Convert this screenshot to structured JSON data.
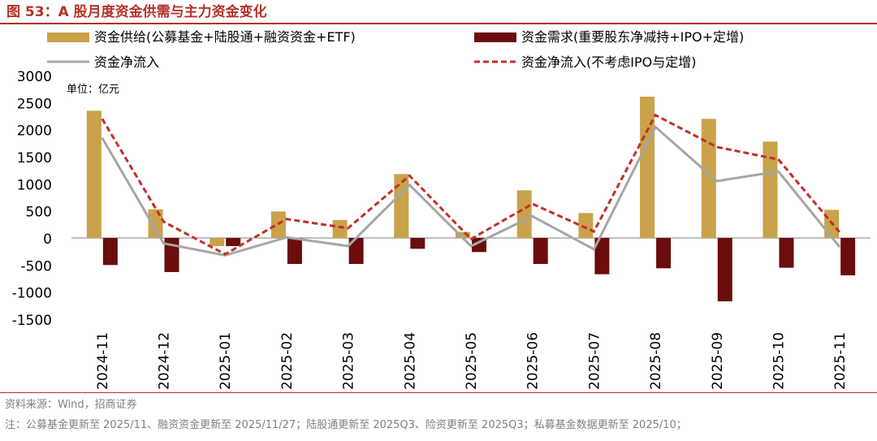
{
  "header": {
    "title": "图 53：A 股月度资金供需与主力资金变化"
  },
  "footer": {
    "source": "资料来源：Wind，招商证券",
    "note": "注：公募基金更新至 2025/11、融资资金更新至 2025/11/27；陆股通更新至 2025Q3、险资更新至 2025Q3；私募基金数据更新至 2025/10；"
  },
  "colors": {
    "supply": "#c9a24a",
    "demand": "#6b0d0d",
    "net": "#a6a6a6",
    "net_ex": "#c0302b",
    "title": "#b5322a"
  },
  "chart_data": {
    "type": "bar",
    "unit_label": "单位：亿元",
    "categories": [
      "2024-11",
      "2024-12",
      "2025-01",
      "2025-02",
      "2025-03",
      "2025-04",
      "2025-05",
      "2025-06",
      "2025-07",
      "2025-08",
      "2025-09",
      "2025-10",
      "2025-11"
    ],
    "ylim": [
      -1500,
      3000
    ],
    "yticks": [
      3000,
      2500,
      2000,
      1500,
      1000,
      500,
      0,
      -500,
      -1000,
      -1500
    ],
    "grid": false,
    "legend_position": "top",
    "series": [
      {
        "name": "资金供给(公募基金+陆股通+融资资金+ETF)",
        "kind": "bar",
        "values": [
          2350,
          530,
          -150,
          490,
          330,
          1180,
          110,
          880,
          460,
          2610,
          2200,
          1780,
          520
        ]
      },
      {
        "name": "资金需求(重要股东净减持+IPO+定增)",
        "kind": "bar",
        "values": [
          -500,
          -630,
          -150,
          -480,
          -480,
          -200,
          -260,
          -480,
          -670,
          -560,
          -1170,
          -550,
          -690
        ]
      },
      {
        "name": "资金净流入",
        "kind": "line",
        "values": [
          1850,
          -100,
          -320,
          10,
          -150,
          980,
          -150,
          400,
          -210,
          2050,
          1050,
          1230,
          -170
        ]
      },
      {
        "name": "资金净流入(不考虑IPO与定增)",
        "kind": "dashed-line",
        "values": [
          2200,
          300,
          -300,
          350,
          180,
          1150,
          -20,
          630,
          120,
          2270,
          1680,
          1450,
          100
        ]
      }
    ]
  }
}
